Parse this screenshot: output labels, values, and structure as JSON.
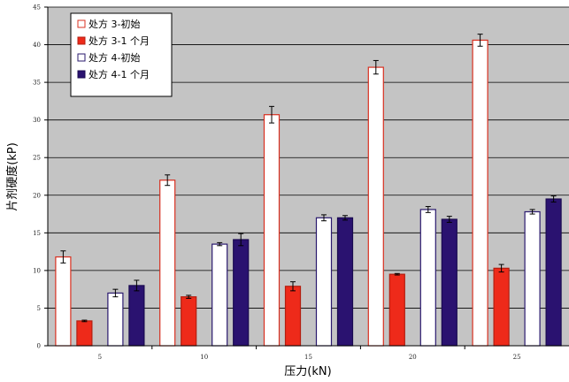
{
  "chart_data": {
    "type": "bar",
    "xlabel": "压力(kN)",
    "ylabel": "片剂硬度(kP)",
    "categories": [
      "5",
      "10",
      "15",
      "20",
      "25"
    ],
    "ylim": [
      0,
      45
    ],
    "yticks": [
      0,
      5,
      10,
      15,
      20,
      25,
      30,
      35,
      40,
      45
    ],
    "grid": true,
    "legend_position": "top-left",
    "series": [
      {
        "name": "处方 3-初始",
        "fill": "#ffffff",
        "stroke": "#d83020",
        "values": [
          11.8,
          22.0,
          30.7,
          37.0,
          40.6
        ],
        "errors": [
          0.8,
          0.7,
          1.1,
          0.9,
          0.8
        ]
      },
      {
        "name": "处方 3-1 个月",
        "fill": "#ee2a1a",
        "stroke": "#b41e10",
        "values": [
          3.3,
          6.5,
          7.9,
          9.5,
          10.3
        ],
        "errors": [
          0.1,
          0.2,
          0.6,
          0.1,
          0.5
        ]
      },
      {
        "name": "处方 4-初始",
        "fill": "#ffffff",
        "stroke": "#2a1a6e",
        "values": [
          7.0,
          13.5,
          17.0,
          18.1,
          17.8
        ],
        "errors": [
          0.5,
          0.2,
          0.4,
          0.4,
          0.3
        ]
      },
      {
        "name": "处方 4-1 个月",
        "fill": "#2a1270",
        "stroke": "#1a0a50",
        "values": [
          8.0,
          14.1,
          17.0,
          16.8,
          19.5
        ],
        "errors": [
          0.7,
          0.8,
          0.3,
          0.4,
          0.4
        ]
      }
    ]
  }
}
